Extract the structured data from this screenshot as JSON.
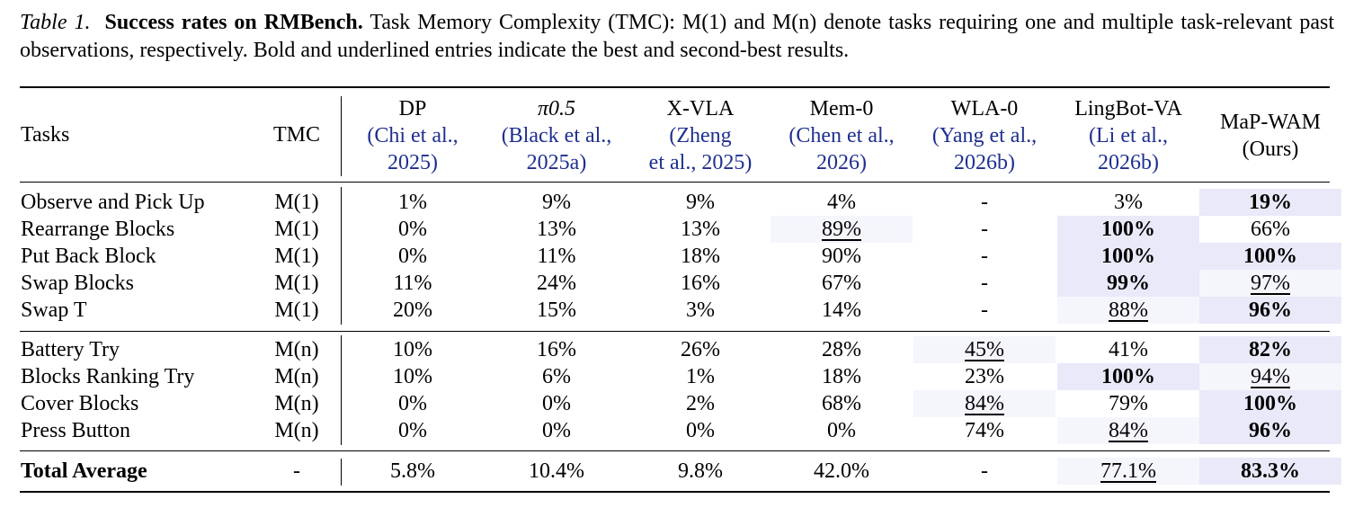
{
  "caption": {
    "label": "Table 1.",
    "title": "Success rates on RMBench.",
    "text": "Task Memory Complexity (TMC): M(1) and M(n) denote tasks requiring one and multiple task-relevant past observations, respectively. Bold and underlined entries indicate the best and second-best results."
  },
  "colors": {
    "highlight_strong": "#e9e9f9",
    "highlight_light": "#f5f5fc",
    "citation": "#1f2f8f"
  },
  "header": {
    "tasks": "Tasks",
    "tmc": "TMC",
    "methods": [
      {
        "name": "DP",
        "cite": [
          "(Chi et al.,",
          "2025)"
        ]
      },
      {
        "name": "π0.5",
        "cite": [
          "(Black et al.,",
          "2025a)"
        ]
      },
      {
        "name": "X-VLA",
        "cite": [
          "(Zheng",
          "et al., 2025)"
        ]
      },
      {
        "name": "Mem-0",
        "cite": [
          "(Chen et al.,",
          "2026)"
        ]
      },
      {
        "name": "WLA-0",
        "cite": [
          "(Yang et al.,",
          "2026b)"
        ]
      },
      {
        "name": "LingBot-VA",
        "cite": [
          "(Li et al.,",
          "2026b)"
        ]
      },
      {
        "name": "MaP-WAM",
        "cite": [
          "(Ours)"
        ]
      }
    ]
  },
  "rows": [
    {
      "task": "Observe and Pick Up",
      "tmc": "M(1)",
      "values": [
        "1%",
        "9%",
        "9%",
        "4%",
        "-",
        "3%",
        "19%"
      ]
    },
    {
      "task": "Rearrange Blocks",
      "tmc": "M(1)",
      "values": [
        "0%",
        "13%",
        "13%",
        "89%",
        "-",
        "100%",
        "66%"
      ]
    },
    {
      "task": "Put Back Block",
      "tmc": "M(1)",
      "values": [
        "0%",
        "11%",
        "18%",
        "90%",
        "-",
        "100%",
        "100%"
      ]
    },
    {
      "task": "Swap Blocks",
      "tmc": "M(1)",
      "values": [
        "11%",
        "24%",
        "16%",
        "67%",
        "-",
        "99%",
        "97%"
      ]
    },
    {
      "task": "Swap T",
      "tmc": "M(1)",
      "values": [
        "20%",
        "15%",
        "3%",
        "14%",
        "-",
        "88%",
        "96%"
      ]
    },
    {
      "task": "Battery Try",
      "tmc": "M(n)",
      "values": [
        "10%",
        "16%",
        "26%",
        "28%",
        "45%",
        "41%",
        "82%"
      ]
    },
    {
      "task": "Blocks Ranking Try",
      "tmc": "M(n)",
      "values": [
        "10%",
        "6%",
        "1%",
        "18%",
        "23%",
        "100%",
        "94%"
      ]
    },
    {
      "task": "Cover Blocks",
      "tmc": "M(n)",
      "values": [
        "0%",
        "0%",
        "2%",
        "68%",
        "84%",
        "79%",
        "100%"
      ]
    },
    {
      "task": "Press Button",
      "tmc": "M(n)",
      "values": [
        "0%",
        "0%",
        "0%",
        "0%",
        "74%",
        "84%",
        "96%"
      ]
    }
  ],
  "total": {
    "task": "Total Average",
    "tmc": "-",
    "values": [
      "5.8%",
      "10.4%",
      "9.8%",
      "42.0%",
      "-",
      "77.1%",
      "83.3%"
    ]
  },
  "styles": {
    "bold": [
      [
        0,
        6
      ],
      [
        1,
        5
      ],
      [
        2,
        5
      ],
      [
        2,
        6
      ],
      [
        3,
        5
      ],
      [
        4,
        6
      ],
      [
        5,
        6
      ],
      [
        6,
        5
      ],
      [
        7,
        6
      ],
      [
        8,
        6
      ],
      [
        9,
        6
      ]
    ],
    "underline": [
      [
        1,
        3
      ],
      [
        3,
        6
      ],
      [
        4,
        5
      ],
      [
        5,
        4
      ],
      [
        6,
        6
      ],
      [
        7,
        4
      ],
      [
        8,
        5
      ],
      [
        9,
        5
      ]
    ],
    "shade_strong": [
      [
        0,
        6
      ],
      [
        1,
        5
      ],
      [
        2,
        5
      ],
      [
        2,
        6
      ],
      [
        3,
        5
      ],
      [
        4,
        6
      ],
      [
        5,
        6
      ],
      [
        6,
        5
      ],
      [
        7,
        6
      ],
      [
        8,
        6
      ],
      [
        9,
        6
      ]
    ],
    "shade_light": [
      [
        1,
        3
      ],
      [
        3,
        6
      ],
      [
        4,
        5
      ],
      [
        5,
        4
      ],
      [
        6,
        6
      ],
      [
        7,
        4
      ],
      [
        8,
        5
      ],
      [
        9,
        5
      ]
    ]
  }
}
